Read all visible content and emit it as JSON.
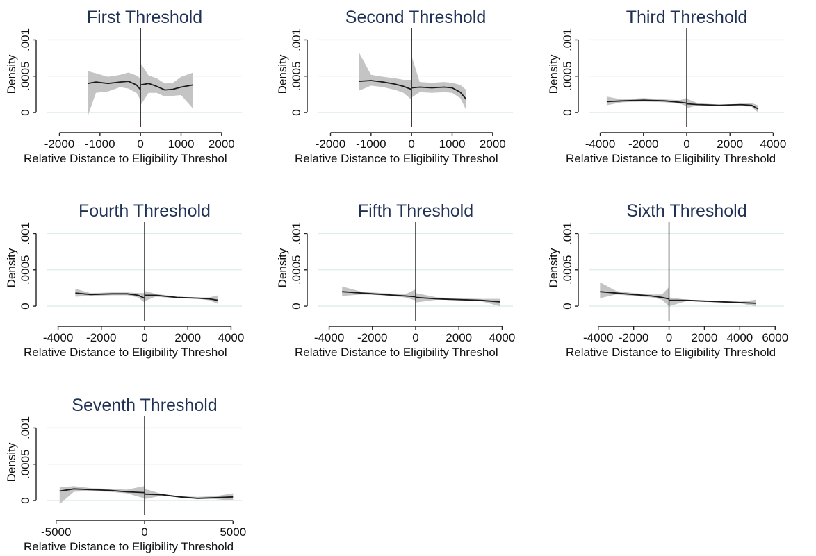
{
  "chart_data": [
    {
      "type": "line",
      "title": "First Threshold",
      "xlabel": "Relative Distance to Eligibility Threshol",
      "ylabel": "Density",
      "xlim": [
        -2300,
        2500
      ],
      "ylim": [
        -0.0002,
        0.0011
      ],
      "xticks": [
        -2000,
        -1000,
        0,
        1000,
        2000
      ],
      "xtick_labels": [
        "-2000",
        "-1000",
        "0",
        "1000",
        "2000"
      ],
      "yticks": [
        0,
        0.0005,
        0.001
      ],
      "ytick_labels": [
        "0",
        ".0005",
        ".001"
      ],
      "grid": true,
      "threshold_x": 0,
      "segments": [
        {
          "x": [
            -1300,
            -1100,
            -800,
            -500,
            -300,
            -100,
            -10
          ],
          "y": [
            0.0004,
            0.00042,
            0.0004,
            0.00042,
            0.00043,
            0.00038,
            0.00032
          ],
          "lower": [
            -5e-05,
            0.00027,
            0.00029,
            0.00035,
            0.00033,
            0.00027,
            0.00018
          ],
          "upper": [
            0.00057,
            0.00054,
            0.00049,
            0.00052,
            0.00055,
            0.00051,
            0.00047
          ]
        },
        {
          "x": [
            10,
            200,
            400,
            600,
            800,
            1000,
            1300
          ],
          "y": [
            0.00038,
            0.0004,
            0.00036,
            0.00031,
            0.00032,
            0.00035,
            0.00038
          ],
          "lower": [
            0.00011,
            0.00027,
            0.00027,
            0.00022,
            0.00023,
            0.00024,
            5e-05
          ],
          "upper": [
            0.00067,
            0.00051,
            0.00047,
            0.0004,
            0.00041,
            0.00049,
            0.00055
          ]
        }
      ]
    },
    {
      "type": "line",
      "title": "Second Threshold",
      "xlabel": "Relative Distance to Eligibility Threshol",
      "ylabel": "Density",
      "xlim": [
        -2300,
        2500
      ],
      "ylim": [
        -0.0002,
        0.0011
      ],
      "xticks": [
        -2000,
        -1000,
        0,
        1000,
        2000
      ],
      "xtick_labels": [
        "-2000",
        "-1000",
        "0",
        "1000",
        "2000"
      ],
      "yticks": [
        0,
        0.0005,
        0.001
      ],
      "ytick_labels": [
        "0",
        ".0005",
        ".001"
      ],
      "grid": true,
      "threshold_x": 0,
      "segments": [
        {
          "x": [
            -1300,
            -1000,
            -700,
            -400,
            -200,
            -10
          ],
          "y": [
            0.00043,
            0.00044,
            0.00042,
            0.00039,
            0.00036,
            0.00032
          ],
          "lower": [
            0.0003,
            0.00037,
            0.00035,
            0.00031,
            0.00027,
            0.00018
          ],
          "upper": [
            0.00083,
            0.00052,
            0.00049,
            0.00047,
            0.00045,
            0.00045
          ]
        },
        {
          "x": [
            10,
            200,
            500,
            800,
            1000,
            1200,
            1350
          ],
          "y": [
            0.00034,
            0.00035,
            0.00034,
            0.00035,
            0.00034,
            0.00028,
            0.00018
          ],
          "lower": [
            0.00021,
            0.00028,
            0.00027,
            0.00028,
            0.00027,
            0.0002,
            3e-05
          ],
          "upper": [
            0.00076,
            0.00042,
            0.00041,
            0.00042,
            0.00041,
            0.00038,
            0.00031
          ]
        }
      ]
    },
    {
      "type": "line",
      "title": "Third Threshold",
      "xlabel": "Relative Distance to Eligibility Threshold",
      "ylabel": "Density",
      "xlim": [
        -4500,
        4500
      ],
      "ylim": [
        -0.0002,
        0.0011
      ],
      "xticks": [
        -4000,
        -2000,
        0,
        2000,
        4000
      ],
      "xtick_labels": [
        "-4000",
        "-2000",
        "0",
        "2000",
        "4000"
      ],
      "yticks": [
        0,
        0.0005,
        0.001
      ],
      "ytick_labels": [
        "0",
        ".0005",
        ".001"
      ],
      "grid": true,
      "threshold_x": 0,
      "segments": [
        {
          "x": [
            -3700,
            -3000,
            -2000,
            -1000,
            -300,
            -10
          ],
          "y": [
            0.00015,
            0.00016,
            0.00017,
            0.00016,
            0.00014,
            0.00013
          ],
          "lower": [
            0.0001,
            0.00014,
            0.00015,
            0.00014,
            0.00012,
            9e-05
          ],
          "upper": [
            0.00022,
            0.00018,
            0.0002,
            0.00018,
            0.00017,
            0.0002
          ]
        },
        {
          "x": [
            10,
            500,
            1500,
            2500,
            3000,
            3300
          ],
          "y": [
            0.00012,
            0.00011,
            0.0001,
            0.00011,
            0.0001,
            5e-05
          ],
          "lower": [
            6e-05,
            0.0001,
            9e-05,
            9e-05,
            8e-05,
            0.0
          ],
          "upper": [
            0.00019,
            0.00013,
            0.00011,
            0.00012,
            0.00013,
            0.0001
          ]
        }
      ]
    },
    {
      "type": "line",
      "title": "Fourth Threshold",
      "xlabel": "Relative Distance to Eligibility Threshol",
      "ylabel": "Density",
      "xlim": [
        -4500,
        4500
      ],
      "ylim": [
        -0.0002,
        0.0011
      ],
      "xticks": [
        -4000,
        -2000,
        0,
        2000,
        4000
      ],
      "xtick_labels": [
        "-4000",
        "-2000",
        "0",
        "2000",
        "4000"
      ],
      "yticks": [
        0,
        0.0005,
        0.001
      ],
      "ytick_labels": [
        "0",
        ".0005",
        ".001"
      ],
      "grid": true,
      "threshold_x": 0,
      "segments": [
        {
          "x": [
            -3200,
            -2500,
            -1500,
            -800,
            -300,
            -10
          ],
          "y": [
            0.00018,
            0.00016,
            0.00017,
            0.00017,
            0.00015,
            0.00011
          ],
          "lower": [
            0.00013,
            0.00014,
            0.00015,
            0.00015,
            0.00012,
            5e-05
          ],
          "upper": [
            0.00024,
            0.00018,
            0.00019,
            0.00019,
            0.00018,
            0.00018
          ]
        },
        {
          "x": [
            10,
            500,
            1500,
            2500,
            3000,
            3400
          ],
          "y": [
            0.00015,
            0.00015,
            0.00012,
            0.00011,
            0.0001,
            8e-05
          ],
          "lower": [
            7e-05,
            0.00013,
            0.00011,
            0.0001,
            8e-05,
            3e-05
          ],
          "upper": [
            0.00021,
            0.00017,
            0.00013,
            0.00012,
            0.00012,
            0.00015
          ]
        }
      ]
    },
    {
      "type": "line",
      "title": "Fifth Threshold",
      "xlabel": "Relative Distance to Eligibility Threshol",
      "ylabel": "Density",
      "xlim": [
        -4500,
        4500
      ],
      "ylim": [
        -0.0002,
        0.0011
      ],
      "xticks": [
        -4000,
        -2000,
        0,
        2000,
        4000
      ],
      "xtick_labels": [
        "-4000",
        "-2000",
        "0",
        "2000",
        "4000"
      ],
      "yticks": [
        0,
        0.0005,
        0.001
      ],
      "ytick_labels": [
        "0",
        ".0005",
        ".001"
      ],
      "grid": true,
      "threshold_x": 0,
      "segments": [
        {
          "x": [
            -3400,
            -2500,
            -1500,
            -500,
            -10
          ],
          "y": [
            0.0002,
            0.00018,
            0.00016,
            0.00014,
            0.00013
          ],
          "lower": [
            0.00014,
            0.00016,
            0.00015,
            0.00012,
            8e-05
          ],
          "upper": [
            0.00027,
            0.0002,
            0.00018,
            0.00016,
            0.00023
          ]
        },
        {
          "x": [
            10,
            1000,
            2000,
            3000,
            3900
          ],
          "y": [
            0.00012,
            0.0001,
            9e-05,
            8e-05,
            6e-05
          ],
          "lower": [
            5e-05,
            9e-05,
            8e-05,
            7e-05,
            0.0
          ],
          "upper": [
            0.00018,
            0.00012,
            0.00011,
            0.0001,
            0.0001
          ]
        }
      ]
    },
    {
      "type": "line",
      "title": "Sixth Threshold",
      "xlabel": "Relative Distance to Eligibility Threshold",
      "ylabel": "Density",
      "xlim": [
        -4500,
        6500
      ],
      "ylim": [
        -0.0002,
        0.0011
      ],
      "xticks": [
        -4000,
        -2000,
        0,
        2000,
        4000,
        6000
      ],
      "xtick_labels": [
        "-4000",
        "-2000",
        "0",
        "2000",
        "4000",
        "6000"
      ],
      "yticks": [
        0,
        0.0005,
        0.001
      ],
      "ytick_labels": [
        "0",
        ".0005",
        ".001"
      ],
      "grid": true,
      "threshold_x": 0,
      "segments": [
        {
          "x": [
            -3900,
            -3000,
            -2000,
            -1000,
            -400,
            -10
          ],
          "y": [
            0.0002,
            0.00018,
            0.00016,
            0.00014,
            0.00012,
            0.0001
          ],
          "lower": [
            0.00011,
            0.00016,
            0.00014,
            0.00012,
            9e-05,
            0.0
          ],
          "upper": [
            0.00033,
            0.00021,
            0.00018,
            0.00016,
            0.00016,
            0.00026
          ]
        },
        {
          "x": [
            10,
            1000,
            2000,
            3000,
            4000,
            4900
          ],
          "y": [
            8e-05,
            8e-05,
            7e-05,
            6e-05,
            5e-05,
            4e-05
          ],
          "lower": [
            0.0,
            7e-05,
            6e-05,
            5e-05,
            4e-05,
            0.0
          ],
          "upper": [
            0.00012,
            9e-05,
            8e-05,
            7e-05,
            6e-05,
            9e-05
          ]
        }
      ]
    },
    {
      "type": "line",
      "title": "Seventh Threshold",
      "xlabel": "Relative Distance to Eligibility Threshold",
      "ylabel": "Density",
      "xlim": [
        -5500,
        5500
      ],
      "ylim": [
        -0.0002,
        0.0011
      ],
      "xticks": [
        -5000,
        0,
        5000
      ],
      "xtick_labels": [
        "-5000",
        "0",
        "5000"
      ],
      "yticks": [
        0,
        0.0005,
        0.001
      ],
      "ytick_labels": [
        "0",
        ".0005",
        ".001"
      ],
      "grid": true,
      "threshold_x": 0,
      "segments": [
        {
          "x": [
            -4800,
            -4000,
            -3000,
            -2000,
            -1000,
            -10
          ],
          "y": [
            0.00013,
            0.00016,
            0.00015,
            0.00014,
            0.00012,
            0.00011
          ],
          "lower": [
            -5e-05,
            0.00012,
            0.00013,
            0.00012,
            0.0001,
            3e-05
          ],
          "upper": [
            0.00018,
            0.0002,
            0.00017,
            0.00016,
            0.00015,
            0.0002
          ]
        },
        {
          "x": [
            10,
            1000,
            2000,
            3000,
            4000,
            5000
          ],
          "y": [
            9e-05,
            8e-05,
            5e-05,
            3e-05,
            4e-05,
            5e-05
          ],
          "lower": [
            2e-05,
            7e-05,
            4e-05,
            2e-05,
            2e-05,
            0.0
          ],
          "upper": [
            0.00016,
            9e-05,
            6e-05,
            5e-05,
            6e-05,
            0.0001
          ]
        }
      ]
    }
  ]
}
